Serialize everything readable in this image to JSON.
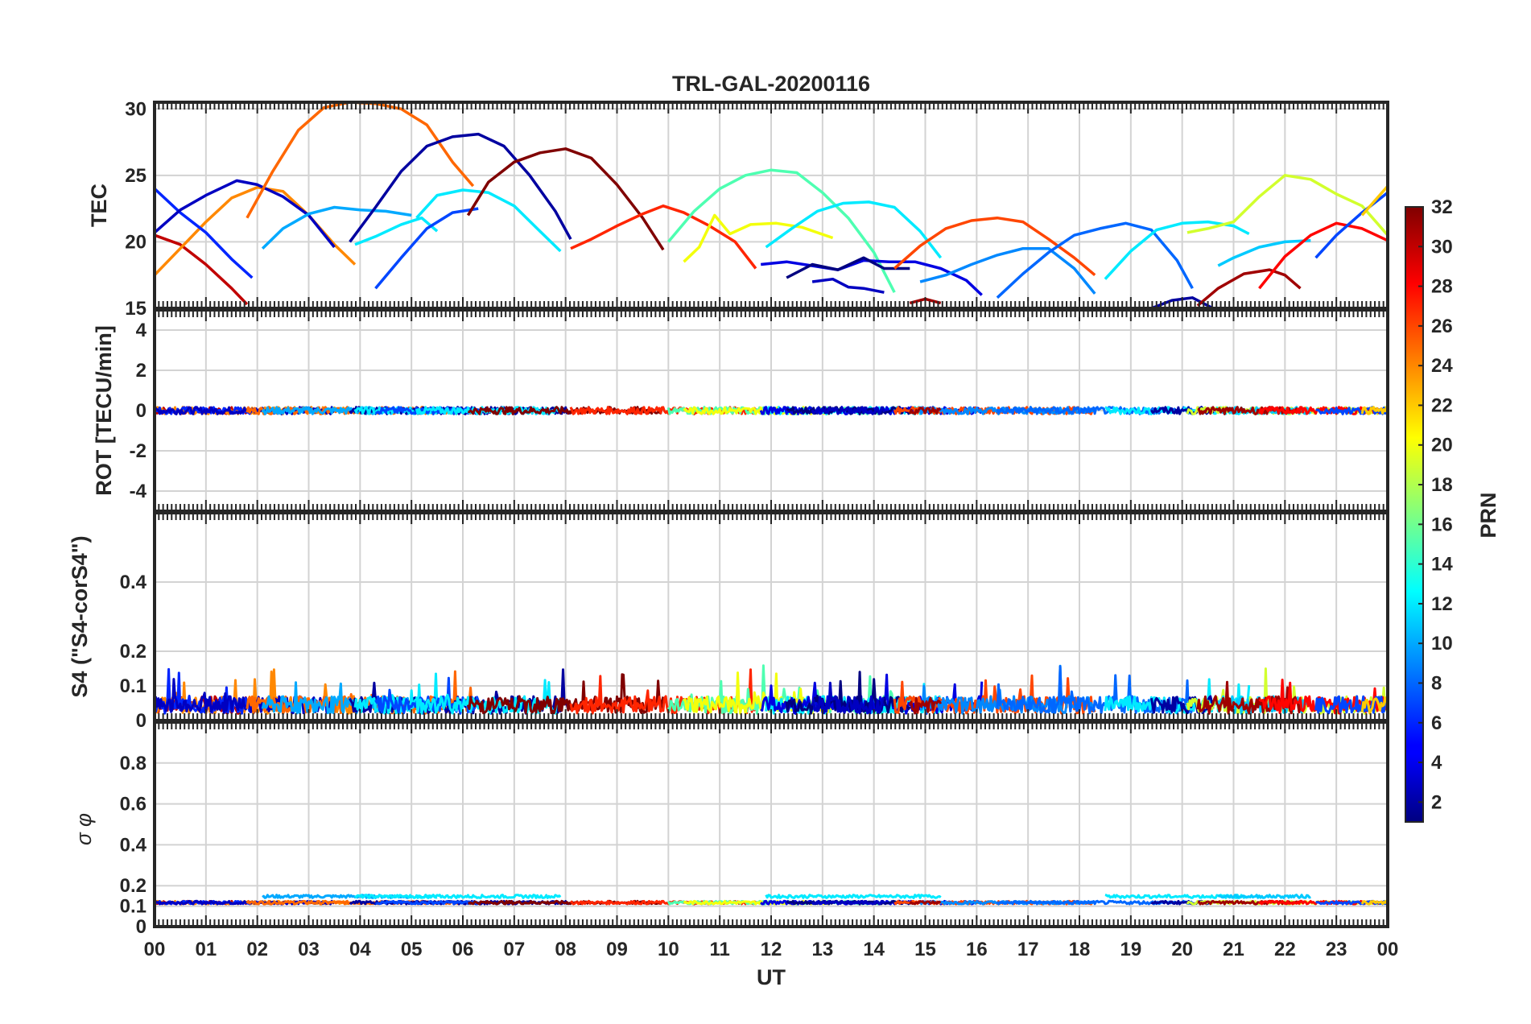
{
  "chart_data": {
    "type": "line",
    "title": "TRL-GAL-20200116",
    "xlabel": "UT",
    "x_ticks": [
      "00",
      "01",
      "02",
      "03",
      "04",
      "05",
      "06",
      "07",
      "08",
      "09",
      "10",
      "11",
      "12",
      "13",
      "14",
      "15",
      "16",
      "17",
      "18",
      "19",
      "20",
      "21",
      "22",
      "23",
      "00"
    ],
    "xlim": [
      0,
      24
    ],
    "grid": true,
    "colorbar": {
      "label": "PRN",
      "range": [
        1,
        32
      ],
      "ticks": [
        "2",
        "4",
        "6",
        "8",
        "10",
        "12",
        "14",
        "16",
        "18",
        "20",
        "22",
        "24",
        "26",
        "28",
        "30",
        "32"
      ],
      "colormap": "jet"
    },
    "panels": [
      {
        "id": "tec",
        "ylabel": "TEC",
        "ylim": [
          15,
          30.5
        ],
        "yticks": [
          "15",
          "20",
          "25",
          "30"
        ],
        "series": [
          {
            "prn": 30,
            "x": [
              0.0,
              0.5,
              1.0,
              1.5,
              1.8
            ],
            "y": [
              20.5,
              19.8,
              18.3,
              16.5,
              15.3
            ]
          },
          {
            "prn": 24,
            "x": [
              0.0,
              0.5,
              1.0,
              1.5,
              2.0,
              2.5,
              3.0,
              3.5,
              3.9
            ],
            "y": [
              17.5,
              19.5,
              21.5,
              23.3,
              24.1,
              23.8,
              22.0,
              19.8,
              18.3
            ]
          },
          {
            "prn": 6,
            "x": [
              0.0,
              0.5,
              1.0,
              1.5,
              1.9
            ],
            "y": [
              24.0,
              22.2,
              20.7,
              18.7,
              17.3
            ]
          },
          {
            "prn": 3,
            "x": [
              0.0,
              0.5,
              1.0,
              1.6,
              2.0,
              2.5,
              3.0,
              3.5
            ],
            "y": [
              20.7,
              22.4,
              23.5,
              24.6,
              24.3,
              23.4,
              22.0,
              19.6
            ]
          },
          {
            "prn": 25,
            "x": [
              1.8,
              2.3,
              2.8,
              3.3,
              3.8,
              4.3,
              4.8,
              5.3,
              5.8,
              6.2
            ],
            "y": [
              21.8,
              25.3,
              28.4,
              30.1,
              30.5,
              30.4,
              30.0,
              28.8,
              26.0,
              24.2
            ]
          },
          {
            "prn": 10,
            "x": [
              2.1,
              2.5,
              3.0,
              3.5,
              4.0,
              4.5,
              5.0
            ],
            "y": [
              19.5,
              21.0,
              22.1,
              22.6,
              22.4,
              22.3,
              22.0
            ]
          },
          {
            "prn": 2,
            "x": [
              3.8,
              4.3,
              4.8,
              5.3,
              5.8,
              6.3,
              6.8,
              7.3,
              7.8,
              8.1
            ],
            "y": [
              20.0,
              22.6,
              25.3,
              27.2,
              27.9,
              28.1,
              27.2,
              25.0,
              22.3,
              20.2
            ]
          },
          {
            "prn": 12,
            "x": [
              3.9,
              4.3,
              4.8,
              5.2,
              5.5
            ],
            "y": [
              19.8,
              20.4,
              21.3,
              21.8,
              20.8
            ]
          },
          {
            "prn": 7,
            "x": [
              4.3,
              4.8,
              5.3,
              5.8,
              6.3
            ],
            "y": [
              16.5,
              18.8,
              21.0,
              22.2,
              22.5
            ]
          },
          {
            "prn": 12,
            "x": [
              5.1,
              5.5,
              6.0,
              6.5,
              7.0,
              7.5,
              7.9
            ],
            "y": [
              21.8,
              23.5,
              23.9,
              23.7,
              22.7,
              20.8,
              19.3
            ]
          },
          {
            "prn": 32,
            "x": [
              6.1,
              6.5,
              7.0,
              7.5,
              8.0,
              8.5,
              9.0,
              9.5,
              9.9
            ],
            "y": [
              22.0,
              24.5,
              26.0,
              26.7,
              27.0,
              26.3,
              24.3,
              21.8,
              19.4
            ]
          },
          {
            "prn": 27,
            "x": [
              8.1,
              8.5,
              9.0,
              9.5,
              9.9,
              10.3,
              10.8,
              11.3,
              11.7
            ],
            "y": [
              19.5,
              20.2,
              21.2,
              22.1,
              22.7,
              22.2,
              21.2,
              20.0,
              18.0
            ]
          },
          {
            "prn": 15,
            "x": [
              10.0,
              10.5,
              11.0,
              11.5,
              12.0,
              12.5,
              13.0,
              13.5,
              14.0,
              14.4
            ],
            "y": [
              20.0,
              22.3,
              24.0,
              25.0,
              25.4,
              25.2,
              23.7,
              21.8,
              19.2,
              16.2
            ]
          },
          {
            "prn": 20,
            "x": [
              10.3,
              10.6,
              10.9,
              11.2,
              11.6,
              12.1,
              12.6,
              13.2
            ],
            "y": [
              18.5,
              19.6,
              22.0,
              20.6,
              21.3,
              21.4,
              21.1,
              20.3
            ]
          },
          {
            "prn": 12,
            "x": [
              11.9,
              12.4,
              12.9,
              13.4,
              13.9,
              14.4,
              14.9,
              15.3
            ],
            "y": [
              19.6,
              21.0,
              22.3,
              22.9,
              23.0,
              22.6,
              20.8,
              18.8
            ]
          },
          {
            "prn": 4,
            "x": [
              11.8,
              12.3,
              12.8,
              13.3,
              13.8,
              14.3,
              14.8,
              15.3,
              15.8,
              16.1
            ],
            "y": [
              18.3,
              18.5,
              18.2,
              17.9,
              18.6,
              18.5,
              18.5,
              18.0,
              17.1,
              16.0
            ]
          },
          {
            "prn": 1,
            "x": [
              12.3,
              12.8,
              13.3,
              13.8,
              14.2,
              14.7
            ],
            "y": [
              17.3,
              18.3,
              17.9,
              18.8,
              18.0,
              18.0
            ]
          },
          {
            "prn": 3,
            "x": [
              12.8,
              13.2,
              13.5,
              13.8,
              14.2
            ],
            "y": [
              17.0,
              17.2,
              16.6,
              16.5,
              16.2
            ]
          },
          {
            "prn": 26,
            "x": [
              14.4,
              14.9,
              15.4,
              15.9,
              16.4,
              16.9,
              17.4,
              17.9,
              18.3
            ],
            "y": [
              18.0,
              19.7,
              21.0,
              21.6,
              21.8,
              21.5,
              20.2,
              18.8,
              17.5
            ]
          },
          {
            "prn": 9,
            "x": [
              14.9,
              15.4,
              15.9,
              16.4,
              16.9,
              17.4,
              17.9,
              18.3
            ],
            "y": [
              17.0,
              17.5,
              18.3,
              19.0,
              19.5,
              19.5,
              18.0,
              16.1
            ]
          },
          {
            "prn": 31,
            "x": [
              14.7,
              15.0,
              15.3
            ],
            "y": [
              15.4,
              15.7,
              15.4
            ]
          },
          {
            "prn": 8,
            "x": [
              16.4,
              16.9,
              17.4,
              17.9,
              18.4,
              18.9,
              19.4,
              19.9,
              20.2
            ],
            "y": [
              15.8,
              17.6,
              19.2,
              20.5,
              21.0,
              21.4,
              20.9,
              18.6,
              16.5
            ]
          },
          {
            "prn": 12,
            "x": [
              18.5,
              19.0,
              19.5,
              20.0,
              20.5,
              21.0,
              21.3
            ],
            "y": [
              17.2,
              19.3,
              20.9,
              21.4,
              21.5,
              21.2,
              20.6
            ]
          },
          {
            "prn": 2,
            "x": [
              19.4,
              19.8,
              20.2,
              20.6
            ],
            "y": [
              15.0,
              15.6,
              15.8,
              15.0
            ]
          },
          {
            "prn": 19,
            "x": [
              20.1,
              20.5,
              21.0,
              21.5,
              22.0,
              22.5,
              23.0,
              23.5,
              24.0
            ],
            "y": [
              20.7,
              21.0,
              21.5,
              23.4,
              25.0,
              24.7,
              23.6,
              22.7,
              20.5
            ]
          },
          {
            "prn": 11,
            "x": [
              20.7,
              21.0,
              21.5,
              22.0,
              22.5
            ],
            "y": [
              18.2,
              18.8,
              19.6,
              20.0,
              20.1
            ]
          },
          {
            "prn": 31,
            "x": [
              20.3,
              20.7,
              21.2,
              21.7,
              22.0,
              22.3
            ],
            "y": [
              15.2,
              16.5,
              17.6,
              17.9,
              17.5,
              16.5
            ]
          },
          {
            "prn": 28,
            "x": [
              21.5,
              22.0,
              22.5,
              23.0,
              23.5,
              24.0
            ],
            "y": [
              16.5,
              18.9,
              20.5,
              21.4,
              21.0,
              20.1
            ]
          },
          {
            "prn": 7,
            "x": [
              22.6,
              23.0,
              23.5,
              24.0
            ],
            "y": [
              18.8,
              20.5,
              22.2,
              23.7
            ]
          },
          {
            "prn": 22,
            "x": [
              23.5,
              24.0
            ],
            "y": [
              22.0,
              24.2
            ]
          }
        ]
      },
      {
        "id": "rot",
        "ylabel": "ROT [TECU/min]",
        "ylim": [
          -5,
          5
        ],
        "yticks": [
          "-4",
          "-2",
          "0",
          "2",
          "4"
        ]
      },
      {
        "id": "s4",
        "ylabel": "S4 (\"S4-corS4\")",
        "ylim": [
          0,
          0.6
        ],
        "yticks": [
          "0",
          "0.1",
          "0.2",
          "0.4"
        ]
      },
      {
        "id": "sigma",
        "ylabel": "σ φ",
        "ylim": [
          0,
          1.0
        ],
        "yticks": [
          "0",
          "0.1",
          "0.2",
          "0.4",
          "0.6",
          "0.8"
        ]
      }
    ]
  }
}
